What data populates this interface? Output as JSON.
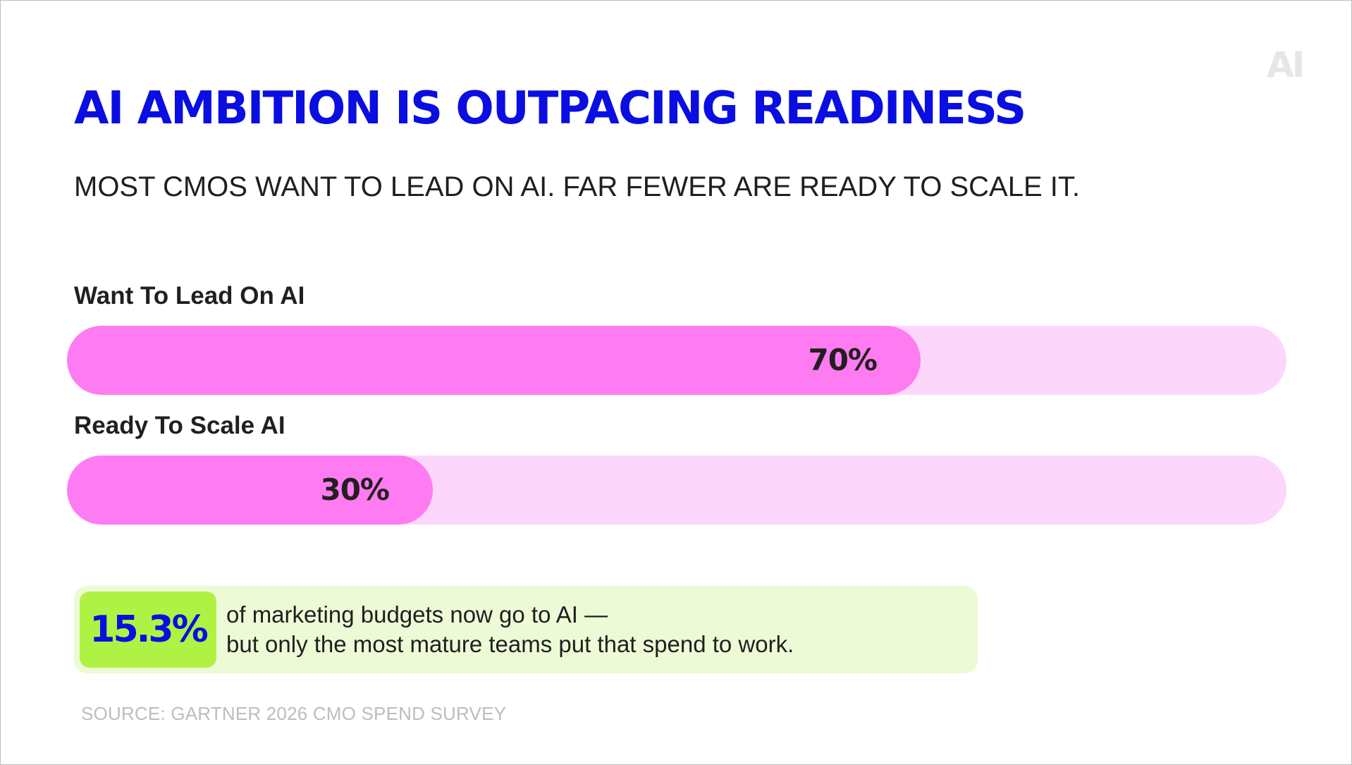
{
  "logo": {
    "text": "AI"
  },
  "header": {
    "title": "AI AMBITION IS OUTPACING READINESS",
    "subtitle": "MOST CMOS WANT TO LEAD ON AI. FAR FEWER ARE READY TO SCALE IT."
  },
  "colors": {
    "title": "#0a0ee0",
    "bar_fill": "#ff7bf2",
    "bar_track": "#fdd6fb",
    "callout_bg": "#edfad6",
    "callout_badge": "#b0f244"
  },
  "chart_data": {
    "type": "bar",
    "orientation": "horizontal",
    "categories": [
      "Want To Lead On AI",
      "Ready To Scale AI"
    ],
    "values": [
      70,
      30
    ],
    "value_labels": [
      "70%",
      "30%"
    ],
    "unit": "%",
    "xlim": [
      0,
      100
    ],
    "grid": false,
    "legend": "none"
  },
  "callout": {
    "stat": "15.3%",
    "line1": "of marketing budgets now go to AI —",
    "line2": "but only the most mature teams put that spend to work."
  },
  "source": "SOURCE: GARTNER 2026 CMO SPEND SURVEY"
}
